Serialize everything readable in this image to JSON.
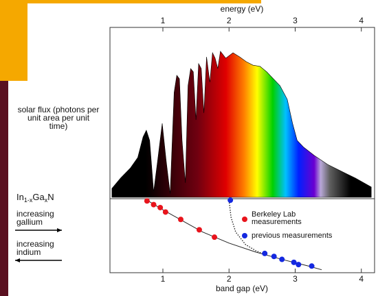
{
  "chart_data": [
    {
      "type": "area",
      "xlabel": "energy (eV)",
      "ylabel": "solar flux (photons per unit area per unit time)",
      "xlim": [
        0.2,
        4.2
      ],
      "xticks": [
        1,
        2,
        3,
        4
      ],
      "ylim": [
        0,
        100
      ],
      "x": [
        0.23,
        0.36,
        0.51,
        0.62,
        0.7,
        0.75,
        0.8,
        0.86,
        0.92,
        0.99,
        1.05,
        1.11,
        1.17,
        1.21,
        1.25,
        1.29,
        1.34,
        1.38,
        1.42,
        1.46,
        1.5,
        1.54,
        1.58,
        1.62,
        1.66,
        1.71,
        1.75,
        1.79,
        1.83,
        1.87,
        1.95,
        2.06,
        2.16,
        2.26,
        2.36,
        2.47,
        2.57,
        2.67,
        2.77,
        2.88,
        2.96,
        3.03,
        3.13,
        3.29,
        3.49,
        3.7,
        3.91,
        4.15
      ],
      "values": [
        5.4,
        11.7,
        17.9,
        24.2,
        36.7,
        40.8,
        34.6,
        3.3,
        22.1,
        45,
        22.1,
        2.1,
        63.8,
        74.2,
        72.1,
        34.6,
        8.8,
        67.9,
        78.3,
        76.3,
        47.1,
        81.3,
        78.3,
        51.3,
        85.4,
        70,
        87.9,
        84.6,
        78.3,
        88.8,
        84.6,
        87.9,
        85.4,
        82.5,
        80.4,
        79.6,
        76.3,
        72.1,
        67.9,
        59.6,
        45,
        34.6,
        30.4,
        25.4,
        20,
        15.8,
        11.7,
        6.3
      ]
    },
    {
      "type": "scatter",
      "xlabel": "band gap (eV)",
      "ylabel": [
        "In",
        "1-x",
        "Ga",
        "x",
        "N"
      ],
      "annotations": [
        "increasing gallium",
        "increasing indium"
      ],
      "xlim": [
        0.2,
        4.2
      ],
      "xticks": [
        1,
        2,
        3,
        4
      ],
      "ylim": [
        1,
        0
      ],
      "series": [
        {
          "name": "Berkeley Lab measurements",
          "color": "#e8141c",
          "x": [
            0.76,
            0.86,
            0.96,
            1.04,
            1.27,
            1.55,
            1.78
          ],
          "values": [
            0.03,
            0.08,
            0.12,
            0.18,
            0.28,
            0.42,
            0.52
          ]
        },
        {
          "name": "previous measurements",
          "color": "#1428e0",
          "x": [
            2.02,
            2.54,
            2.68,
            2.8,
            2.98,
            3.05,
            3.25
          ],
          "values": [
            0.02,
            0.74,
            0.78,
            0.82,
            0.86,
            0.89,
            0.91
          ]
        }
      ],
      "lines": [
        {
          "style": "solid",
          "color": "#222222",
          "x": [
            0.76,
            1.0,
            1.3,
            1.6,
            2.0,
            2.4,
            2.8,
            3.2,
            3.4
          ],
          "values": [
            0.02,
            0.15,
            0.3,
            0.45,
            0.6,
            0.72,
            0.82,
            0.91,
            0.96
          ]
        },
        {
          "style": "dotted",
          "color": "#222222",
          "x": [
            2.0,
            2.03,
            2.1,
            2.25,
            2.4,
            2.5
          ],
          "values": [
            0.02,
            0.25,
            0.45,
            0.62,
            0.7,
            0.74
          ]
        }
      ]
    }
  ]
}
